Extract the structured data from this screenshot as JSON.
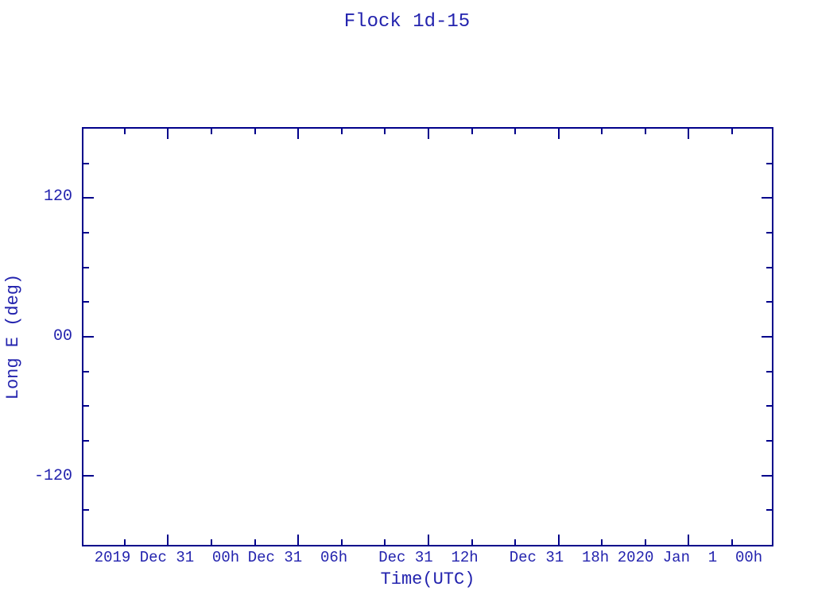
{
  "colors": {
    "text": "#2323ae",
    "line": "#00008b",
    "background": "#ffffff"
  },
  "chart_data": {
    "type": "line",
    "title": "Flock 1d-15",
    "xlabel": "Time(UTC)",
    "ylabel": "Long E (deg)",
    "series": [],
    "grid": false,
    "legend": "none",
    "x_axis": {
      "unit_note": "hours relative to the '2019 Dec 31 00h' major tick",
      "lim": [
        -3.9,
        27.83
      ],
      "major_ticks": [
        {
          "value": 0,
          "label": "2019 Dec 31  00h"
        },
        {
          "value": 6,
          "label": "Dec 31  06h"
        },
        {
          "value": 12,
          "label": "Dec 31  12h"
        },
        {
          "value": 18,
          "label": "Dec 31  18h"
        },
        {
          "value": 24,
          "label": "2020 Jan  1  00h"
        }
      ],
      "minor_tick_values": [
        -2,
        2,
        4,
        8,
        10,
        14,
        16,
        20,
        22,
        26
      ]
    },
    "y_axis": {
      "lim": [
        -180,
        180
      ],
      "major_ticks": [
        {
          "value": 120,
          "label": "120"
        },
        {
          "value": 0,
          "label": "00"
        },
        {
          "value": -120,
          "label": "-120"
        }
      ],
      "minor_tick_values": [
        150,
        90,
        60,
        30,
        -30,
        -60,
        -90,
        -150
      ]
    }
  }
}
